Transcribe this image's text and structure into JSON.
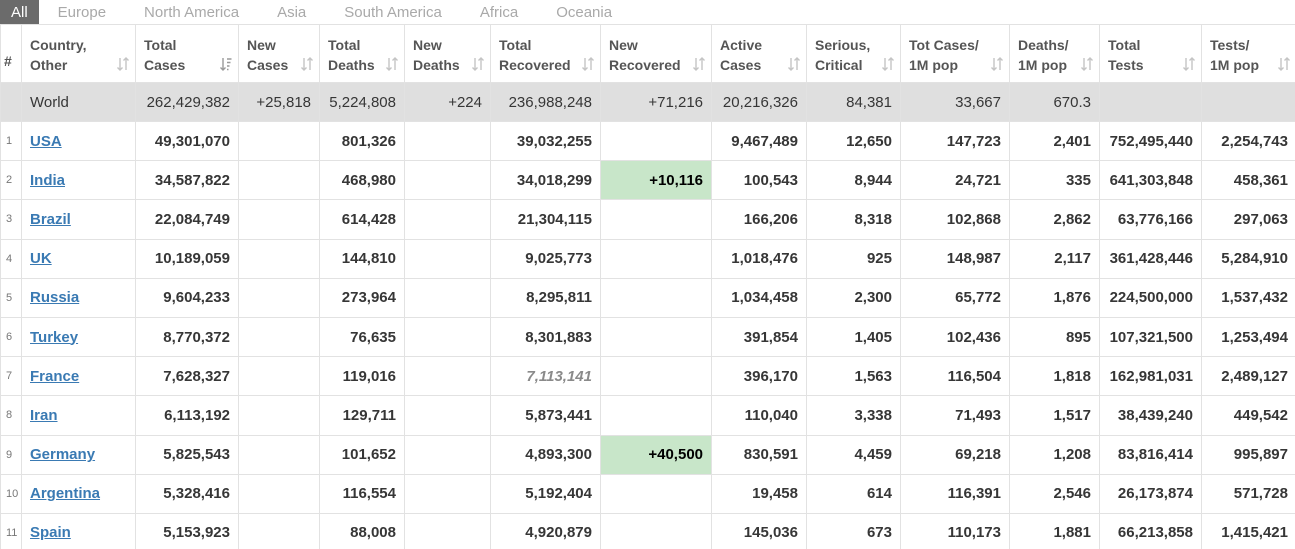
{
  "tabs": [
    {
      "label": "All",
      "active": true
    },
    {
      "label": "Europe"
    },
    {
      "label": "North America"
    },
    {
      "label": "Asia"
    },
    {
      "label": "South America"
    },
    {
      "label": "Africa"
    },
    {
      "label": "Oceania"
    }
  ],
  "columns": [
    {
      "key": "num",
      "lines": [
        "#"
      ],
      "sortable": false
    },
    {
      "key": "country",
      "lines": [
        "Country,",
        "Other"
      ],
      "sortable": true
    },
    {
      "key": "total_cases",
      "lines": [
        "Total",
        "Cases"
      ],
      "sortable": true,
      "sorted": true
    },
    {
      "key": "new_cases",
      "lines": [
        "New",
        "Cases"
      ],
      "sortable": true
    },
    {
      "key": "total_deaths",
      "lines": [
        "Total",
        "Deaths"
      ],
      "sortable": true
    },
    {
      "key": "new_deaths",
      "lines": [
        "New",
        "Deaths"
      ],
      "sortable": true
    },
    {
      "key": "total_recovered",
      "lines": [
        "Total",
        "Recovered"
      ],
      "sortable": true
    },
    {
      "key": "new_recovered",
      "lines": [
        "New",
        "Recovered"
      ],
      "sortable": true
    },
    {
      "key": "active_cases",
      "lines": [
        "Active",
        "Cases"
      ],
      "sortable": true
    },
    {
      "key": "serious_critical",
      "lines": [
        "Serious,",
        "Critical"
      ],
      "sortable": true
    },
    {
      "key": "tot_cases_1m",
      "lines": [
        "Tot Cases/",
        "1M pop"
      ],
      "sortable": true
    },
    {
      "key": "deaths_1m",
      "lines": [
        "Deaths/",
        "1M pop"
      ],
      "sortable": true
    },
    {
      "key": "total_tests",
      "lines": [
        "Total",
        "Tests"
      ],
      "sortable": true
    },
    {
      "key": "tests_1m",
      "lines": [
        "Tests/",
        "1M pop"
      ],
      "sortable": true
    }
  ],
  "world": {
    "country": "World",
    "total_cases": "262,429,382",
    "new_cases": "+25,818",
    "total_deaths": "5,224,808",
    "new_deaths": "+224",
    "total_recovered": "236,988,248",
    "new_recovered": "+71,216",
    "active_cases": "20,216,326",
    "serious_critical": "84,381",
    "tot_cases_1m": "33,667",
    "deaths_1m": "670.3",
    "total_tests": "",
    "tests_1m": ""
  },
  "rows": [
    {
      "num": "1",
      "country": "USA",
      "total_cases": "49,301,070",
      "new_cases": "",
      "total_deaths": "801,326",
      "new_deaths": "",
      "total_recovered": "39,032,255",
      "new_recovered": "",
      "active_cases": "9,467,489",
      "serious_critical": "12,650",
      "tot_cases_1m": "147,723",
      "deaths_1m": "2,401",
      "total_tests": "752,495,440",
      "tests_1m": "2,254,743"
    },
    {
      "num": "2",
      "country": "India",
      "total_cases": "34,587,822",
      "new_cases": "",
      "total_deaths": "468,980",
      "new_deaths": "",
      "total_recovered": "34,018,299",
      "new_recovered": "+10,116",
      "new_recovered_highlight": true,
      "active_cases": "100,543",
      "serious_critical": "8,944",
      "tot_cases_1m": "24,721",
      "deaths_1m": "335",
      "total_tests": "641,303,848",
      "tests_1m": "458,361"
    },
    {
      "num": "3",
      "country": "Brazil",
      "total_cases": "22,084,749",
      "new_cases": "",
      "total_deaths": "614,428",
      "new_deaths": "",
      "total_recovered": "21,304,115",
      "new_recovered": "",
      "active_cases": "166,206",
      "serious_critical": "8,318",
      "tot_cases_1m": "102,868",
      "deaths_1m": "2,862",
      "total_tests": "63,776,166",
      "tests_1m": "297,063"
    },
    {
      "num": "4",
      "country": "UK",
      "total_cases": "10,189,059",
      "new_cases": "",
      "total_deaths": "144,810",
      "new_deaths": "",
      "total_recovered": "9,025,773",
      "new_recovered": "",
      "active_cases": "1,018,476",
      "serious_critical": "925",
      "tot_cases_1m": "148,987",
      "deaths_1m": "2,117",
      "total_tests": "361,428,446",
      "tests_1m": "5,284,910"
    },
    {
      "num": "5",
      "country": "Russia",
      "total_cases": "9,604,233",
      "new_cases": "",
      "total_deaths": "273,964",
      "new_deaths": "",
      "total_recovered": "8,295,811",
      "new_recovered": "",
      "active_cases": "1,034,458",
      "serious_critical": "2,300",
      "tot_cases_1m": "65,772",
      "deaths_1m": "1,876",
      "total_tests": "224,500,000",
      "tests_1m": "1,537,432"
    },
    {
      "num": "6",
      "country": "Turkey",
      "total_cases": "8,770,372",
      "new_cases": "",
      "total_deaths": "76,635",
      "new_deaths": "",
      "total_recovered": "8,301,883",
      "new_recovered": "",
      "active_cases": "391,854",
      "serious_critical": "1,405",
      "tot_cases_1m": "102,436",
      "deaths_1m": "895",
      "total_tests": "107,321,500",
      "tests_1m": "1,253,494"
    },
    {
      "num": "7",
      "country": "France",
      "total_cases": "7,628,327",
      "new_cases": "",
      "total_deaths": "119,016",
      "new_deaths": "",
      "total_recovered": "7,113,141",
      "total_recovered_italic": true,
      "new_recovered": "",
      "active_cases": "396,170",
      "serious_critical": "1,563",
      "tot_cases_1m": "116,504",
      "deaths_1m": "1,818",
      "total_tests": "162,981,031",
      "tests_1m": "2,489,127"
    },
    {
      "num": "8",
      "country": "Iran",
      "total_cases": "6,113,192",
      "new_cases": "",
      "total_deaths": "129,711",
      "new_deaths": "",
      "total_recovered": "5,873,441",
      "new_recovered": "",
      "active_cases": "110,040",
      "serious_critical": "3,338",
      "tot_cases_1m": "71,493",
      "deaths_1m": "1,517",
      "total_tests": "38,439,240",
      "tests_1m": "449,542"
    },
    {
      "num": "9",
      "country": "Germany",
      "total_cases": "5,825,543",
      "new_cases": "",
      "total_deaths": "101,652",
      "new_deaths": "",
      "total_recovered": "4,893,300",
      "new_recovered": "+40,500",
      "new_recovered_highlight": true,
      "active_cases": "830,591",
      "serious_critical": "4,459",
      "tot_cases_1m": "69,218",
      "deaths_1m": "1,208",
      "total_tests": "83,816,414",
      "tests_1m": "995,897"
    },
    {
      "num": "10",
      "country": "Argentina",
      "total_cases": "5,328,416",
      "new_cases": "",
      "total_deaths": "116,554",
      "new_deaths": "",
      "total_recovered": "5,192,404",
      "new_recovered": "",
      "active_cases": "19,458",
      "serious_critical": "614",
      "tot_cases_1m": "116,391",
      "deaths_1m": "2,546",
      "total_tests": "26,173,874",
      "tests_1m": "571,728"
    },
    {
      "num": "11",
      "country": "Spain",
      "total_cases": "5,153,923",
      "new_cases": "",
      "total_deaths": "88,008",
      "new_deaths": "",
      "total_recovered": "4,920,879",
      "new_recovered": "",
      "active_cases": "145,036",
      "serious_critical": "673",
      "tot_cases_1m": "110,173",
      "deaths_1m": "1,881",
      "total_tests": "66,213,858",
      "tests_1m": "1,415,421"
    }
  ],
  "colors": {
    "link": "#3a7ab3",
    "highlight_green": "#c8e6c9",
    "world_row_bg": "#dfdfdf",
    "active_tab_bg": "#6b6b6b",
    "sort_icon": "#c4c4c4",
    "sort_icon_active": "#9a9a9a"
  },
  "icons": {
    "sort": "sort-arrows-icon",
    "sorted": "sort-desc-icon"
  }
}
